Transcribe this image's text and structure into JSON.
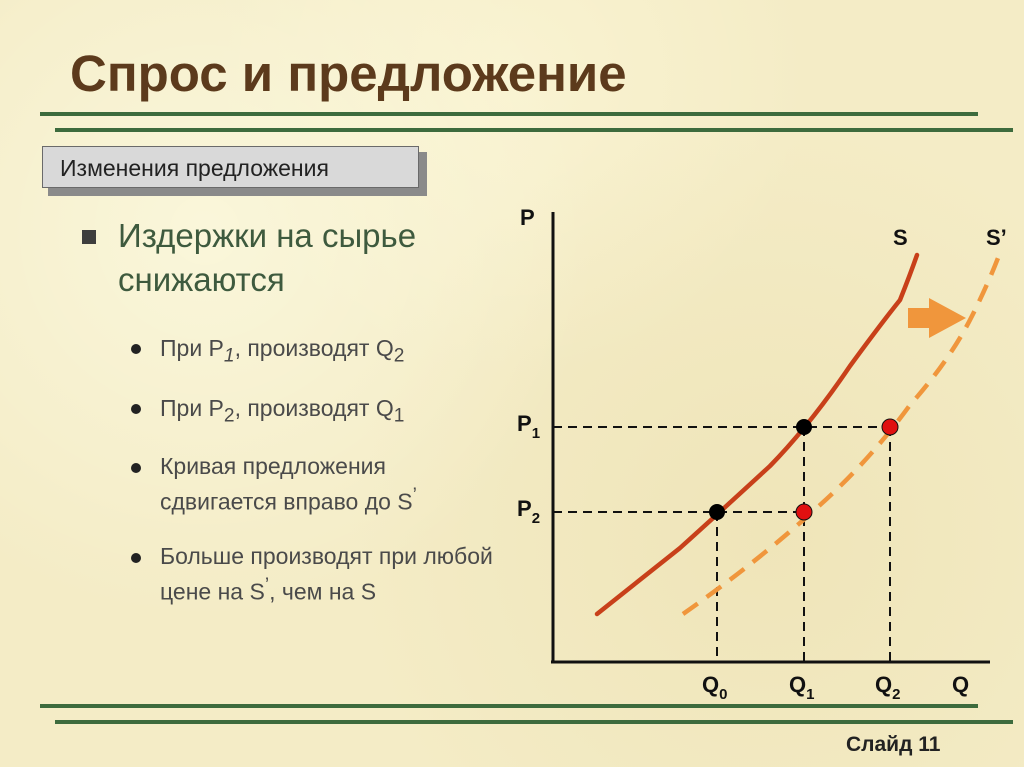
{
  "title": "Спрос и предложение",
  "badge": "Изменения предложения",
  "bullet_main": "Издержки на сырье снижаются",
  "sub_bullets": [
    {
      "prefix": "При P",
      "sub1": "1",
      "mid": ", производят Q",
      "sub2": "2"
    },
    {
      "prefix": "При P",
      "sub1": "2",
      "mid": ", производят Q",
      "sub2": "1"
    },
    {
      "text1": "Кривая предложения сдвигается вправо до S",
      "sup": "’"
    },
    {
      "text1": "Больше производят при любой  цене на S",
      "sup": "’",
      "text2": ", чем на S"
    }
  ],
  "diagram": {
    "axis_y_label": "P",
    "axis_x_label": "Q",
    "curve_s_label": "S",
    "curve_s2_label": "S’",
    "p1": {
      "main": "P",
      "sub": "1"
    },
    "p2": {
      "main": "P",
      "sub": "2"
    },
    "q0": {
      "main": "Q",
      "sub": "0"
    },
    "q1": {
      "main": "Q",
      "sub": "1"
    },
    "q2": {
      "main": "Q",
      "sub": "2"
    },
    "colors": {
      "supply_curve": "#c8401a",
      "shifted_curve": "#f0963c",
      "arrow": "#f0963c",
      "point_black": "#000000",
      "point_red": "#e01010"
    }
  },
  "slide_number": "Слайд 11"
}
